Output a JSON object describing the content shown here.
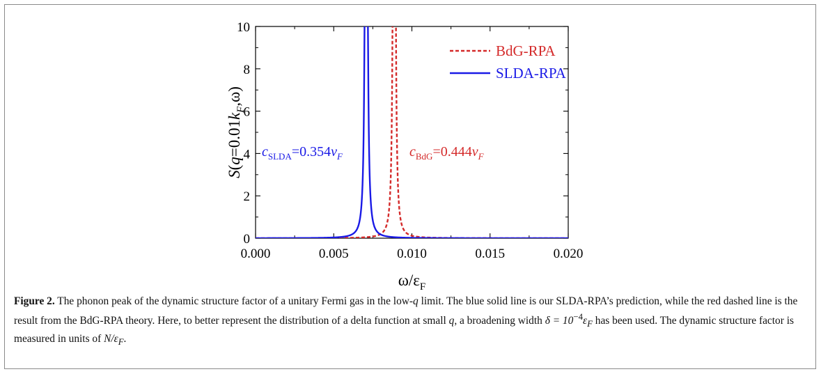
{
  "chart_data": {
    "type": "line",
    "xlabel": "ω/ε",
    "xlabel_sub": "F",
    "ylabel_parts": [
      "S(",
      "q",
      "=0.01",
      "k",
      "F",
      ",ω)"
    ],
    "xlim": [
      0.0,
      0.02
    ],
    "ylim": [
      0,
      10
    ],
    "x_ticks": [
      "0.000",
      "0.005",
      "0.010",
      "0.015",
      "0.020"
    ],
    "x_tick_values": [
      0.0,
      0.005,
      0.01,
      0.015,
      0.02
    ],
    "y_ticks": [
      "0",
      "2",
      "4",
      "6",
      "8",
      "10"
    ],
    "y_tick_values": [
      0,
      2,
      4,
      6,
      8,
      10
    ],
    "legend_position": "top-right",
    "series": [
      {
        "name": "BdG-RPA",
        "color": "#d42a2a",
        "style": "dashed",
        "peak_x": 0.00887,
        "width": 0.0001
      },
      {
        "name": "SLDA-RPA",
        "color": "#1a1ae6",
        "style": "solid",
        "peak_x": 0.00708,
        "width": 0.0001
      }
    ],
    "annotations": {
      "slda": {
        "prefix": "c",
        "sub": "SLDA",
        "value": "=0.354",
        "v": "v",
        "vsub": "F",
        "color": "#1a1ae6"
      },
      "bdg": {
        "prefix": "c",
        "sub": "BdG",
        "value": "=0.444",
        "v": "v",
        "vsub": "F",
        "color": "#d42a2a"
      }
    }
  },
  "caption": {
    "label": "Figure 2.",
    "text_1": " The phonon peak of the dynamic structure factor of a unitary Fermi gas in the low-",
    "q1": "q",
    "text_2": " limit. The blue solid line is our SLDA-RPA’s prediction, while the red dashed line is the result from the BdG-RPA theory. Here, to better represent the distribution of a delta function at small ",
    "q2": "q",
    "text_3": ", a broadening width ",
    "math_1": "δ = 10",
    "math_1_sup": "−4",
    "math_1_tail": "ε",
    "math_1_sub": "F",
    "text_4": " has been used. The dynamic structure factor is measured in units of ",
    "math_2": "N/ε",
    "math_2_sub": "F",
    "text_5": "."
  }
}
